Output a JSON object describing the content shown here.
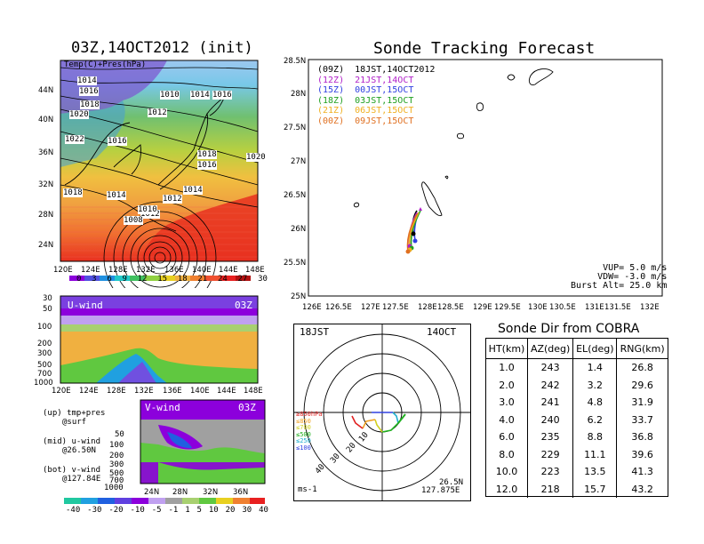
{
  "left_map": {
    "title": "03Z,14OCT2012 (init)",
    "legend": "Temp(C)+Pres(hPa)",
    "lat_ticks": [
      "44N",
      "40N",
      "36N",
      "32N",
      "28N",
      "24N"
    ],
    "lon_ticks": [
      "120E",
      "124E",
      "128E",
      "132E",
      "136E",
      "140E",
      "144E",
      "148E"
    ],
    "contour_labels": [
      "1014",
      "1016",
      "1018",
      "1020",
      "1012",
      "1016",
      "1018",
      "1016",
      "1020",
      "1022",
      "1014",
      "1012",
      "1018",
      "1014",
      "1012",
      "1010",
      "1008",
      "1010",
      "1014",
      "1016"
    ],
    "colorbar_ticks": [
      "0",
      "3",
      "6",
      "9",
      "12",
      "15",
      "18",
      "21",
      "24",
      "27",
      "30"
    ]
  },
  "u_panel": {
    "label": "U-wind",
    "time": "03Z",
    "p_ticks": [
      "30",
      "50",
      "100",
      "200",
      "300",
      "500",
      "700",
      "1000"
    ],
    "lon_ticks": [
      "120E",
      "124E",
      "128E",
      "132E",
      "136E",
      "140E",
      "144E",
      "148E"
    ]
  },
  "v_panel": {
    "label": "V-wind",
    "time": "03Z",
    "p_ticks": [
      "50",
      "100",
      "200",
      "300",
      "500",
      "700",
      "1000"
    ],
    "lat_ticks": [
      "24N",
      "28N",
      "32N",
      "36N"
    ],
    "colorbar_ticks": [
      "-40",
      "-30",
      "-20",
      "-10",
      "-5",
      "-1",
      "1",
      "5",
      "10",
      "20",
      "30",
      "40"
    ]
  },
  "notes": {
    "line1a": "(up) tmp+pres",
    "line1b": "@surf",
    "line2a": "(mid) u-wind",
    "line2b": "@26.50N",
    "line3a": "(bot) v-wind",
    "line3b": "@127.84E"
  },
  "track": {
    "title": "Sonde Tracking Forecast",
    "legend": [
      {
        "text": "(09Z)  18JST,14OCT2012",
        "color": "#000000"
      },
      {
        "text": "(12Z)  21JST,14OCT",
        "color": "#b020c8"
      },
      {
        "text": "(15Z)  00JST,15OCT",
        "color": "#3040e0"
      },
      {
        "text": "(18Z)  03JST,15OCT",
        "color": "#20a020"
      },
      {
        "text": "(21Z)  06JST,15OCT",
        "color": "#f0b020"
      },
      {
        "text": "(00Z)  09JST,15OCT",
        "color": "#e07020"
      }
    ],
    "lat_ticks": [
      "28.5N",
      "28N",
      "27.5N",
      "27N",
      "26.5N",
      "26N",
      "25.5N",
      "25N"
    ],
    "lon_ticks": [
      "126E",
      "126.5E",
      "127E",
      "127.5E",
      "128E",
      "128.5E",
      "129E",
      "129.5E",
      "130E",
      "130.5E",
      "131E",
      "131.5E",
      "132E"
    ],
    "params": {
      "vup": "VUP= 5.0 m/s",
      "vdw": "VDW= -3.0 m/s",
      "burst": "Burst Alt= 25.0 km"
    }
  },
  "polar": {
    "time": "18JST",
    "date": "14OCT",
    "ring_labels": [
      "10",
      "20",
      "30",
      "40"
    ],
    "height_legend": [
      {
        "text": "≥850hPa",
        "color": "#e02020"
      },
      {
        "text": "≤850",
        "color": "#f0a020"
      },
      {
        "text": "≤700",
        "color": "#d0d020"
      },
      {
        "text": "≤500",
        "color": "#20b020"
      },
      {
        "text": "≤250",
        "color": "#20b0d0"
      },
      {
        "text": "≤100",
        "color": "#3040e0"
      }
    ],
    "units": "ms-1",
    "lat": "26.5N",
    "lon": "127.875E"
  },
  "cobra": {
    "title": "Sonde Dir from COBRA",
    "headers": [
      "HT(km)",
      "AZ(deg)",
      "EL(deg)",
      "RNG(km)"
    ],
    "rows": [
      [
        "1.0",
        "243",
        "1.4",
        "26.8"
      ],
      [
        "2.0",
        "242",
        "3.2",
        "29.6"
      ],
      [
        "3.0",
        "241",
        "4.8",
        "31.9"
      ],
      [
        "4.0",
        "240",
        "6.2",
        "33.7"
      ],
      [
        "6.0",
        "235",
        "8.8",
        "36.8"
      ],
      [
        "8.0",
        "229",
        "11.1",
        "39.6"
      ],
      [
        "10.0",
        "223",
        "13.5",
        "41.3"
      ],
      [
        "12.0",
        "218",
        "15.7",
        "43.2"
      ]
    ]
  },
  "colors": {
    "purple": "#8c00dc",
    "blue": "#2060e0",
    "cyan": "#20c8c8",
    "green": "#60c840",
    "yellow": "#e8d020",
    "orange": "#f0a040",
    "red": "#e82020",
    "gray": "#909090"
  }
}
